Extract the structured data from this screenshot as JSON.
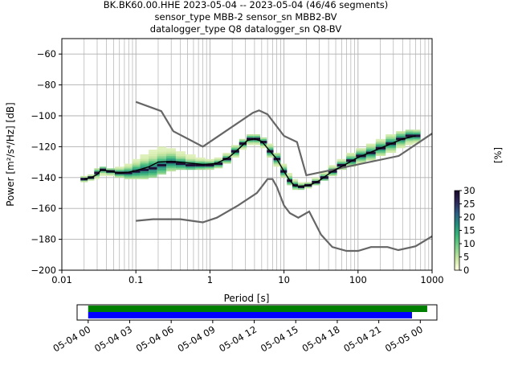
{
  "chart_data": [
    {
      "type": "heatmap",
      "title_lines": [
        "BK.BK60.00.HHE   2023-05-04 -- 2023-05-04  (46/46 segments)",
        "sensor_type MBB-2 sensor_sn MBB2-BV",
        "datalogger_type Q8 datalogger_sn Q8-BV"
      ],
      "xlabel": "Period [s]",
      "ylabel": "Power [m²/s⁴/Hz] [dB]",
      "xscale": "log",
      "xlim": [
        0.01,
        1000
      ],
      "ylim": [
        -200,
        -50
      ],
      "x_ticks": [
        {
          "value": 0.01,
          "label": "0.01"
        },
        {
          "value": 0.1,
          "label": "0.1"
        },
        {
          "value": 1,
          "label": "1"
        },
        {
          "value": 10,
          "label": "10"
        },
        {
          "value": 100,
          "label": "100"
        },
        {
          "value": 1000,
          "label": "1000"
        }
      ],
      "y_ticks": [
        {
          "value": -200,
          "label": "−200"
        },
        {
          "value": -180,
          "label": "−180"
        },
        {
          "value": -160,
          "label": "−160"
        },
        {
          "value": -140,
          "label": "−140"
        },
        {
          "value": -120,
          "label": "−120"
        },
        {
          "value": -100,
          "label": "−100"
        },
        {
          "value": -80,
          "label": "−80"
        },
        {
          "value": -60,
          "label": "−60"
        }
      ],
      "grid": true,
      "colorbar": {
        "label": "[%]",
        "range": [
          0,
          30
        ],
        "ticks": [
          {
            "value": 0,
            "label": "0"
          },
          {
            "value": 5,
            "label": "5"
          },
          {
            "value": 10,
            "label": "10"
          },
          {
            "value": 15,
            "label": "15"
          },
          {
            "value": 20,
            "label": "20"
          },
          {
            "value": 25,
            "label": "25"
          },
          {
            "value": 30,
            "label": "30"
          }
        ],
        "colors": [
          "#ffffe0",
          "#c8e6a0",
          "#7fd08a",
          "#3cb878",
          "#23907a",
          "#2a5f84",
          "#2d2a5c",
          "#1a0b2e"
        ]
      },
      "high_noise_model": [
        [
          0.1,
          -91
        ],
        [
          0.22,
          -97
        ],
        [
          0.32,
          -110
        ],
        [
          0.8,
          -120
        ],
        [
          3.8,
          -98
        ],
        [
          4.6,
          -96.5
        ],
        [
          6,
          -99
        ],
        [
          10,
          -113
        ],
        [
          15,
          -117
        ],
        [
          20,
          -138.5
        ],
        [
          354.8,
          -126
        ],
        [
          1000,
          -111.5
        ]
      ],
      "low_noise_model": [
        [
          0.1,
          -168
        ],
        [
          0.17,
          -167
        ],
        [
          0.4,
          -167
        ],
        [
          0.8,
          -169
        ],
        [
          1.24,
          -166
        ],
        [
          2.4,
          -158
        ],
        [
          4.3,
          -150
        ],
        [
          5,
          -146
        ],
        [
          6,
          -141
        ],
        [
          7,
          -141
        ],
        [
          8,
          -146
        ],
        [
          10,
          -158
        ],
        [
          12,
          -163
        ],
        [
          15.6,
          -166
        ],
        [
          21.9,
          -162
        ],
        [
          31.6,
          -177
        ],
        [
          45,
          -185
        ],
        [
          70,
          -187.5
        ],
        [
          100,
          -187.5
        ],
        [
          150,
          -185
        ],
        [
          250,
          -185
        ],
        [
          350,
          -187
        ],
        [
          600,
          -184.5
        ],
        [
          1000,
          -178
        ]
      ],
      "mode_line": [
        [
          0.02,
          -141
        ],
        [
          0.025,
          -140
        ],
        [
          0.03,
          -138
        ],
        [
          0.034,
          -135
        ],
        [
          0.045,
          -136
        ],
        [
          0.06,
          -137
        ],
        [
          0.08,
          -136.5
        ],
        [
          0.1,
          -135.5
        ],
        [
          0.15,
          -133
        ],
        [
          0.2,
          -130
        ],
        [
          0.3,
          -129.5
        ],
        [
          0.5,
          -130.5
        ],
        [
          0.8,
          -131.5
        ],
        [
          1.2,
          -131
        ],
        [
          1.8,
          -127
        ],
        [
          2.5,
          -121
        ],
        [
          3.2,
          -116
        ],
        [
          4,
          -115
        ],
        [
          5,
          -116.5
        ],
        [
          6,
          -121
        ],
        [
          8,
          -128
        ],
        [
          10,
          -136
        ],
        [
          12,
          -142
        ],
        [
          14,
          -145.5
        ],
        [
          17,
          -145.5
        ],
        [
          22,
          -145
        ],
        [
          30,
          -142
        ],
        [
          45,
          -136
        ],
        [
          65,
          -132
        ],
        [
          100,
          -127
        ],
        [
          200,
          -121
        ],
        [
          400,
          -115
        ],
        [
          600,
          -113
        ]
      ],
      "density_columns": [
        {
          "period": 0.02,
          "min": -143,
          "max": -139,
          "peak": -141
        },
        {
          "period": 0.025,
          "min": -142,
          "max": -138,
          "peak": -140
        },
        {
          "period": 0.03,
          "min": -141,
          "max": -134,
          "peak": -137
        },
        {
          "period": 0.035,
          "min": -139,
          "max": -133,
          "peak": -135
        },
        {
          "period": 0.045,
          "min": -139,
          "max": -134,
          "peak": -136
        },
        {
          "period": 0.06,
          "min": -140,
          "max": -133,
          "peak": -137
        },
        {
          "period": 0.08,
          "min": -141,
          "max": -131,
          "peak": -137
        },
        {
          "period": 0.1,
          "min": -141,
          "max": -128,
          "peak": -136
        },
        {
          "period": 0.13,
          "min": -141,
          "max": -125,
          "peak": -135
        },
        {
          "period": 0.17,
          "min": -140,
          "max": -122,
          "peak": -134
        },
        {
          "period": 0.22,
          "min": -138,
          "max": -120,
          "peak": -132
        },
        {
          "period": 0.3,
          "min": -136,
          "max": -121,
          "peak": -130
        },
        {
          "period": 0.4,
          "min": -135,
          "max": -123,
          "peak": -131
        },
        {
          "period": 0.55,
          "min": -135,
          "max": -125,
          "peak": -132
        },
        {
          "period": 0.75,
          "min": -135,
          "max": -127,
          "peak": -132
        },
        {
          "period": 1.0,
          "min": -135,
          "max": -128,
          "peak": -132
        },
        {
          "period": 1.3,
          "min": -134,
          "max": -127,
          "peak": -131
        },
        {
          "period": 1.7,
          "min": -131,
          "max": -124,
          "peak": -128
        },
        {
          "period": 2.2,
          "min": -127,
          "max": -119,
          "peak": -123
        },
        {
          "period": 2.8,
          "min": -122,
          "max": -115,
          "peak": -118
        },
        {
          "period": 3.5,
          "min": -119,
          "max": -112,
          "peak": -115
        },
        {
          "period": 4.3,
          "min": -119,
          "max": -112,
          "peak": -115
        },
        {
          "period": 5.3,
          "min": -121,
          "max": -114,
          "peak": -117
        },
        {
          "period": 6.5,
          "min": -127,
          "max": -118,
          "peak": -123
        },
        {
          "period": 8,
          "min": -133,
          "max": -124,
          "peak": -128
        },
        {
          "period": 10,
          "min": -140,
          "max": -131,
          "peak": -136
        },
        {
          "period": 12,
          "min": -145,
          "max": -137,
          "peak": -142
        },
        {
          "period": 14,
          "min": -148,
          "max": -141,
          "peak": -145
        },
        {
          "period": 17,
          "min": -148,
          "max": -143,
          "peak": -146
        },
        {
          "period": 21,
          "min": -147,
          "max": -143,
          "peak": -145
        },
        {
          "period": 27,
          "min": -145,
          "max": -140,
          "peak": -143
        },
        {
          "period": 35,
          "min": -142,
          "max": -136,
          "peak": -140
        },
        {
          "period": 45,
          "min": -139,
          "max": -132,
          "peak": -136
        },
        {
          "period": 60,
          "min": -135,
          "max": -128,
          "peak": -132
        },
        {
          "period": 80,
          "min": -133,
          "max": -124,
          "peak": -129
        },
        {
          "period": 110,
          "min": -131,
          "max": -121,
          "peak": -126
        },
        {
          "period": 150,
          "min": -129,
          "max": -118,
          "peak": -124
        },
        {
          "period": 200,
          "min": -126,
          "max": -115,
          "peak": -121
        },
        {
          "period": 280,
          "min": -124,
          "max": -112,
          "peak": -118
        },
        {
          "period": 380,
          "min": -121,
          "max": -110,
          "peak": -115
        },
        {
          "period": 500,
          "min": -119,
          "max": -109,
          "peak": -113
        },
        {
          "period": 620,
          "min": -118,
          "max": -109,
          "peak": -113
        }
      ]
    },
    {
      "type": "timeline",
      "x_ticks": [
        "05-04 00",
        "05-04 03",
        "05-04 06",
        "05-04 09",
        "05-04 12",
        "05-04 15",
        "05-04 18",
        "05-04 21",
        "05-05 00"
      ],
      "x_range_hours": [
        -0.8,
        25.2
      ],
      "bars": [
        {
          "color": "#008000",
          "start_hour": 0,
          "end_hour": 24.5
        },
        {
          "color": "#0000ff",
          "start_hour": 0,
          "end_hour": 23.4
        }
      ]
    }
  ]
}
